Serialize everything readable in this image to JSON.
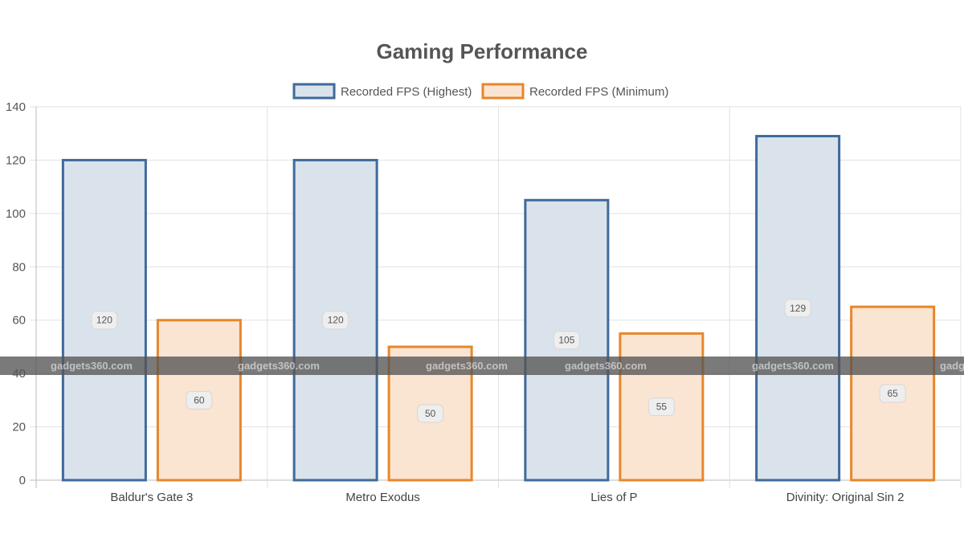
{
  "chart_data": {
    "type": "bar",
    "title": "Gaming Performance",
    "categories": [
      "Baldur's Gate 3",
      "Metro Exodus",
      "Lies of P",
      "Divinity: Original Sin 2"
    ],
    "series": [
      {
        "name": "Recorded FPS (Highest)",
        "values": [
          120,
          120,
          105,
          129
        ],
        "border_color": "#3f6a9b",
        "fill_color": "#dae3ec"
      },
      {
        "name": "Recorded FPS (Minimum)",
        "values": [
          60,
          50,
          55,
          65
        ],
        "border_color": "#e8862a",
        "fill_color": "#fae5d2"
      }
    ],
    "ylim": [
      0,
      140
    ],
    "yticks": [
      0,
      20,
      40,
      60,
      80,
      100,
      120,
      140
    ],
    "xlabel": "",
    "ylabel": "",
    "grid": true,
    "legend_position": "top",
    "data_labels": true
  },
  "watermark": {
    "text": "gadgets360.com",
    "band_color": "#555555"
  }
}
